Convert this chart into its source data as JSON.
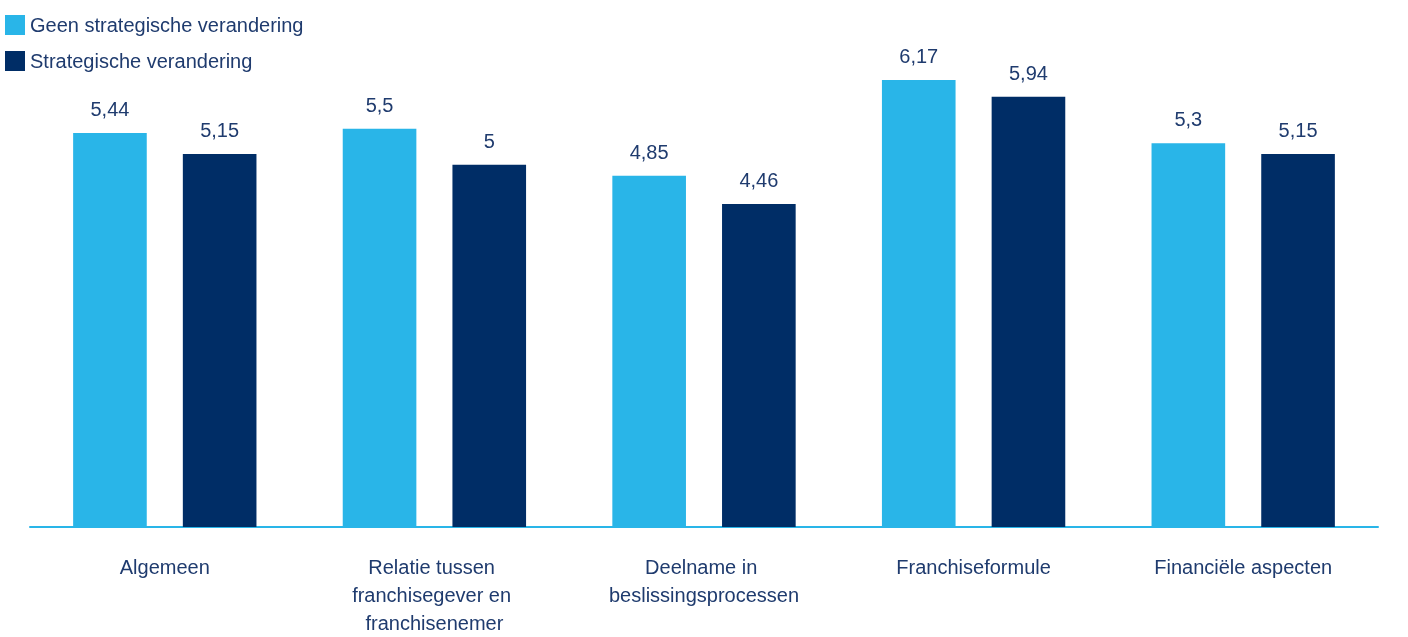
{
  "chart_data": {
    "type": "bar",
    "categories": [
      "Algemeen",
      "Relatie tussen franchisegever en franchisenemer",
      "Deelname in beslissingsprocessen",
      "Franchiseformule",
      "Financiële aspecten"
    ],
    "series": [
      {
        "name": "Geen strategische verandering",
        "color": "#29b5e8",
        "values": [
          5.44,
          5.5,
          4.85,
          6.17,
          5.3
        ],
        "value_labels": [
          "5,44",
          "5,5",
          "4,85",
          "6,17",
          "5,3"
        ]
      },
      {
        "name": "Strategische verandering",
        "color": "#002d66",
        "values": [
          5.15,
          5,
          4.46,
          5.94,
          5.15
        ],
        "value_labels": [
          "5,15",
          "5",
          "4,46",
          "5,94",
          "5,15"
        ]
      }
    ],
    "tick_labels": "x",
    "grid": false,
    "legend": "top left"
  }
}
